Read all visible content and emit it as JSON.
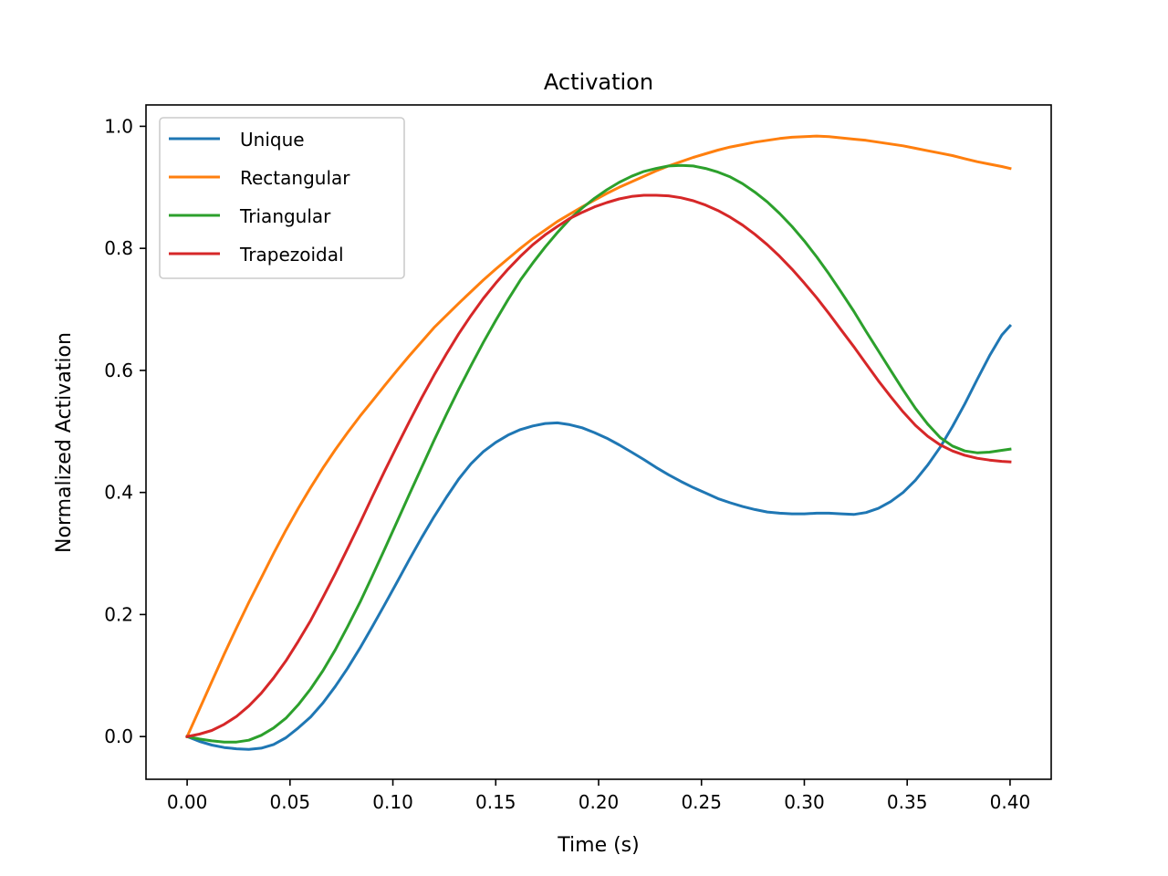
{
  "chart_data": {
    "type": "line",
    "title": "Activation",
    "xlabel": "Time (s)",
    "ylabel": "Normalized Activation",
    "xlim": [
      -0.02,
      0.42
    ],
    "ylim": [
      -0.07,
      1.035
    ],
    "xticks": [
      0.0,
      0.05,
      0.1,
      0.15,
      0.2,
      0.25,
      0.3,
      0.35,
      0.4
    ],
    "xtick_labels": [
      "0.00",
      "0.05",
      "0.10",
      "0.15",
      "0.20",
      "0.25",
      "0.30",
      "0.35",
      "0.40"
    ],
    "yticks": [
      0.0,
      0.2,
      0.4,
      0.6,
      0.8,
      1.0
    ],
    "ytick_labels": [
      "0.0",
      "0.2",
      "0.4",
      "0.6",
      "0.8",
      "1.0"
    ],
    "grid": false,
    "legend_position": "top-left",
    "x": [
      0.0,
      0.006,
      0.012,
      0.018,
      0.024,
      0.03,
      0.036,
      0.042,
      0.048,
      0.054,
      0.06,
      0.066,
      0.072,
      0.078,
      0.084,
      0.09,
      0.096,
      0.102,
      0.108,
      0.114,
      0.12,
      0.126,
      0.132,
      0.138,
      0.144,
      0.15,
      0.156,
      0.162,
      0.168,
      0.174,
      0.18,
      0.186,
      0.192,
      0.198,
      0.204,
      0.21,
      0.216,
      0.222,
      0.228,
      0.234,
      0.24,
      0.246,
      0.252,
      0.258,
      0.264,
      0.27,
      0.276,
      0.282,
      0.288,
      0.294,
      0.3,
      0.306,
      0.312,
      0.318,
      0.324,
      0.33,
      0.336,
      0.342,
      0.348,
      0.354,
      0.36,
      0.366,
      0.372,
      0.378,
      0.384,
      0.39,
      0.396,
      0.4
    ],
    "series": [
      {
        "name": "Unique",
        "color": "#1f77b4",
        "values": [
          0.0,
          -0.008,
          -0.014,
          -0.018,
          -0.02,
          -0.021,
          -0.019,
          -0.013,
          -0.002,
          0.014,
          0.032,
          0.055,
          0.082,
          0.112,
          0.145,
          0.18,
          0.216,
          0.253,
          0.29,
          0.326,
          0.36,
          0.392,
          0.422,
          0.447,
          0.467,
          0.482,
          0.494,
          0.503,
          0.509,
          0.513,
          0.514,
          0.511,
          0.506,
          0.498,
          0.489,
          0.478,
          0.466,
          0.454,
          0.441,
          0.429,
          0.418,
          0.408,
          0.399,
          0.39,
          0.383,
          0.377,
          0.372,
          0.368,
          0.366,
          0.365,
          0.365,
          0.366,
          0.366,
          0.365,
          0.364,
          0.367,
          0.374,
          0.385,
          0.4,
          0.42,
          0.445,
          0.474,
          0.508,
          0.545,
          0.585,
          0.624,
          0.658,
          0.673
        ]
      },
      {
        "name": "Rectangular",
        "color": "#ff7f0e",
        "values": [
          0.0,
          0.045,
          0.09,
          0.135,
          0.178,
          0.22,
          0.26,
          0.3,
          0.338,
          0.374,
          0.408,
          0.44,
          0.47,
          0.498,
          0.525,
          0.55,
          0.575,
          0.6,
          0.624,
          0.647,
          0.67,
          0.69,
          0.71,
          0.729,
          0.748,
          0.766,
          0.783,
          0.8,
          0.816,
          0.83,
          0.844,
          0.856,
          0.868,
          0.879,
          0.89,
          0.9,
          0.909,
          0.918,
          0.927,
          0.935,
          0.942,
          0.949,
          0.955,
          0.961,
          0.966,
          0.97,
          0.974,
          0.977,
          0.98,
          0.982,
          0.983,
          0.984,
          0.983,
          0.981,
          0.979,
          0.977,
          0.974,
          0.971,
          0.968,
          0.964,
          0.96,
          0.956,
          0.952,
          0.947,
          0.942,
          0.938,
          0.934,
          0.931
        ]
      },
      {
        "name": "Triangular",
        "color": "#2ca02c",
        "values": [
          0.0,
          -0.004,
          -0.007,
          -0.009,
          -0.009,
          -0.006,
          0.002,
          0.014,
          0.03,
          0.052,
          0.078,
          0.108,
          0.142,
          0.18,
          0.22,
          0.263,
          0.307,
          0.352,
          0.397,
          0.441,
          0.485,
          0.528,
          0.569,
          0.608,
          0.646,
          0.682,
          0.716,
          0.748,
          0.776,
          0.802,
          0.826,
          0.848,
          0.866,
          0.882,
          0.896,
          0.908,
          0.918,
          0.926,
          0.931,
          0.935,
          0.936,
          0.935,
          0.931,
          0.925,
          0.917,
          0.906,
          0.892,
          0.876,
          0.857,
          0.836,
          0.812,
          0.786,
          0.758,
          0.728,
          0.697,
          0.664,
          0.632,
          0.6,
          0.568,
          0.538,
          0.512,
          0.49,
          0.476,
          0.468,
          0.465,
          0.466,
          0.469,
          0.471
        ]
      },
      {
        "name": "Trapezoidal",
        "color": "#d62728",
        "values": [
          0.0,
          0.004,
          0.01,
          0.02,
          0.033,
          0.05,
          0.071,
          0.096,
          0.124,
          0.156,
          0.19,
          0.228,
          0.267,
          0.308,
          0.35,
          0.393,
          0.435,
          0.476,
          0.516,
          0.555,
          0.592,
          0.627,
          0.66,
          0.69,
          0.718,
          0.743,
          0.766,
          0.787,
          0.806,
          0.822,
          0.836,
          0.849,
          0.859,
          0.868,
          0.875,
          0.881,
          0.885,
          0.887,
          0.887,
          0.886,
          0.883,
          0.878,
          0.871,
          0.862,
          0.851,
          0.838,
          0.823,
          0.806,
          0.787,
          0.766,
          0.743,
          0.719,
          0.693,
          0.666,
          0.639,
          0.611,
          0.583,
          0.557,
          0.532,
          0.51,
          0.492,
          0.478,
          0.468,
          0.461,
          0.456,
          0.453,
          0.451,
          0.45
        ]
      }
    ]
  }
}
